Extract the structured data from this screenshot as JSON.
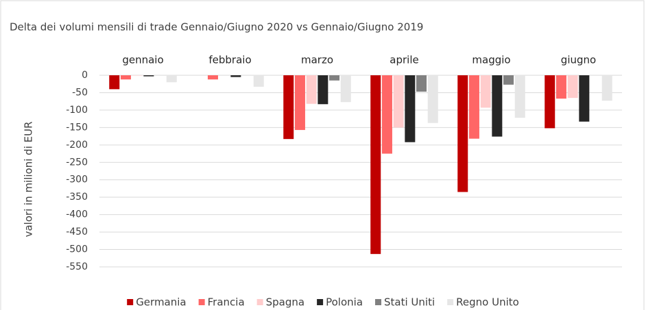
{
  "chart_data": {
    "type": "bar",
    "title": "Delta dei volumi mensili di trade Gennaio/Giugno 2020 vs Gennaio/Giugno 2019",
    "y_label": "valori in milioni di EUR",
    "categories": [
      "gennaio",
      "febbraio",
      "marzo",
      "aprile",
      "maggio",
      "giugno"
    ],
    "series": [
      {
        "name": "Germania",
        "color": "#c00000",
        "values": [
          -40,
          0,
          -183,
          -513,
          -335,
          -152
        ]
      },
      {
        "name": "Francia",
        "color": "#ff6666",
        "values": [
          -12,
          -12,
          -157,
          -225,
          -182,
          -67
        ]
      },
      {
        "name": "Spagna",
        "color": "#ffcccc",
        "values": [
          -1,
          0,
          -82,
          -150,
          -93,
          -65
        ]
      },
      {
        "name": "Polonia",
        "color": "#262626",
        "values": [
          -3,
          -5,
          -83,
          -192,
          -176,
          -133
        ]
      },
      {
        "name": "Stati Uniti",
        "color": "#808080",
        "values": [
          0,
          0,
          -15,
          -47,
          -27,
          0
        ]
      },
      {
        "name": "Regno Unito",
        "color": "#e6e6e6",
        "values": [
          -20,
          -33,
          -77,
          -137,
          -122,
          -73
        ]
      }
    ],
    "ylim": [
      -550,
      0
    ],
    "yticks": [
      0,
      -50,
      -100,
      -150,
      -200,
      -250,
      -300,
      -350,
      -400,
      -450,
      -500,
      -550
    ],
    "grid": true,
    "legend": "bottom"
  }
}
